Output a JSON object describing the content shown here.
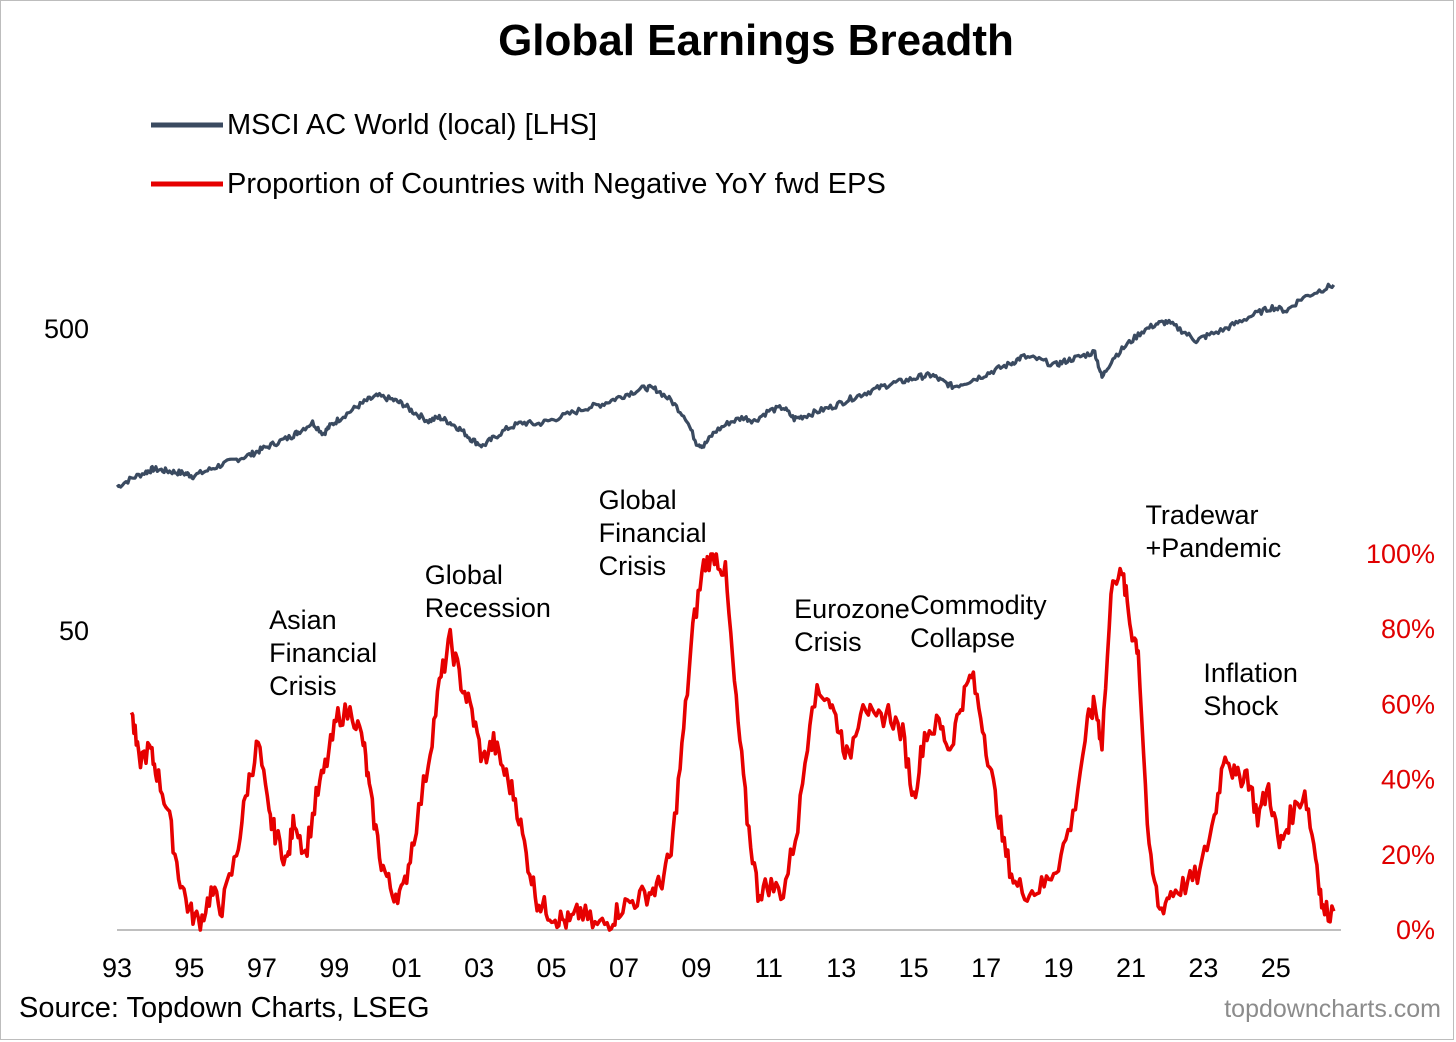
{
  "chart_data": {
    "type": "line",
    "title": "Global Earnings Breadth",
    "source": "Source: Topdown Charts, LSEG",
    "credit": "topdowncharts.com",
    "colors": {
      "msci": "#3a4a60",
      "breadth": "#e60000",
      "axis_right": "#e00000"
    },
    "x_ticks": [
      "93",
      "95",
      "97",
      "99",
      "01",
      "03",
      "05",
      "07",
      "09",
      "11",
      "13",
      "15",
      "17",
      "19",
      "21",
      "23",
      "25"
    ],
    "xlim": [
      1993,
      2026.8
    ],
    "y_left": {
      "scale": "log",
      "ticks": [
        "500",
        "50"
      ],
      "tick_values": [
        500,
        50
      ],
      "ylim": [
        5,
        1500
      ]
    },
    "y_right": {
      "ticks": [
        "100%",
        "80%",
        "60%",
        "40%",
        "20%",
        "0%"
      ],
      "tick_values": [
        1.0,
        0.8,
        0.6,
        0.4,
        0.2,
        0.0
      ],
      "ylim": [
        0,
        1
      ]
    },
    "series": [
      {
        "name": "MSCI AC World (local) [LHS]",
        "axis": "left",
        "points": [
          [
            1993.0,
            150
          ],
          [
            1993.4,
            160
          ],
          [
            1993.8,
            168
          ],
          [
            1994.0,
            172
          ],
          [
            1994.3,
            170
          ],
          [
            1994.6,
            168
          ],
          [
            1994.9,
            166
          ],
          [
            1995.1,
            163
          ],
          [
            1995.5,
            170
          ],
          [
            1995.9,
            178
          ],
          [
            1996.3,
            185
          ],
          [
            1996.7,
            192
          ],
          [
            1997.0,
            200
          ],
          [
            1997.4,
            210
          ],
          [
            1997.8,
            220
          ],
          [
            1998.0,
            228
          ],
          [
            1998.4,
            245
          ],
          [
            1998.7,
            225
          ],
          [
            1998.9,
            240
          ],
          [
            1999.2,
            255
          ],
          [
            1999.6,
            275
          ],
          [
            1999.9,
            290
          ],
          [
            2000.2,
            300
          ],
          [
            2000.6,
            292
          ],
          [
            2000.9,
            282
          ],
          [
            2001.2,
            265
          ],
          [
            2001.6,
            248
          ],
          [
            2001.9,
            255
          ],
          [
            2002.2,
            245
          ],
          [
            2002.5,
            232
          ],
          [
            2002.8,
            215
          ],
          [
            2003.1,
            205
          ],
          [
            2003.4,
            218
          ],
          [
            2003.8,
            235
          ],
          [
            2004.2,
            245
          ],
          [
            2004.6,
            242
          ],
          [
            2005.0,
            250
          ],
          [
            2005.5,
            262
          ],
          [
            2006.0,
            275
          ],
          [
            2006.4,
            282
          ],
          [
            2006.8,
            295
          ],
          [
            2007.2,
            308
          ],
          [
            2007.6,
            320
          ],
          [
            2007.9,
            315
          ],
          [
            2008.3,
            290
          ],
          [
            2008.7,
            255
          ],
          [
            2009.0,
            210
          ],
          [
            2009.2,
            205
          ],
          [
            2009.5,
            228
          ],
          [
            2009.9,
            245
          ],
          [
            2010.3,
            255
          ],
          [
            2010.6,
            248
          ],
          [
            2011.0,
            268
          ],
          [
            2011.4,
            275
          ],
          [
            2011.7,
            252
          ],
          [
            2012.0,
            258
          ],
          [
            2012.4,
            268
          ],
          [
            2012.8,
            278
          ],
          [
            2013.2,
            292
          ],
          [
            2013.6,
            305
          ],
          [
            2014.0,
            318
          ],
          [
            2014.4,
            330
          ],
          [
            2014.8,
            338
          ],
          [
            2015.2,
            348
          ],
          [
            2015.5,
            352
          ],
          [
            2015.8,
            335
          ],
          [
            2016.1,
            322
          ],
          [
            2016.5,
            335
          ],
          [
            2016.9,
            350
          ],
          [
            2017.3,
            368
          ],
          [
            2017.7,
            385
          ],
          [
            2018.0,
            405
          ],
          [
            2018.4,
            398
          ],
          [
            2018.9,
            380
          ],
          [
            2019.2,
            392
          ],
          [
            2019.6,
            405
          ],
          [
            2020.0,
            420
          ],
          [
            2020.2,
            345
          ],
          [
            2020.5,
            400
          ],
          [
            2020.9,
            445
          ],
          [
            2021.3,
            490
          ],
          [
            2021.7,
            520
          ],
          [
            2022.0,
            528
          ],
          [
            2022.4,
            495
          ],
          [
            2022.8,
            458
          ],
          [
            2023.1,
            475
          ],
          [
            2023.6,
            500
          ],
          [
            2024.0,
            530
          ],
          [
            2024.5,
            565
          ],
          [
            2024.9,
            590
          ],
          [
            2025.3,
            575
          ],
          [
            2025.7,
            630
          ],
          [
            2026.2,
            670
          ],
          [
            2026.6,
            700
          ]
        ]
      },
      {
        "name": "Proportion of Countries with Negative YoY fwd EPS",
        "axis": "right",
        "points": [
          [
            1993.4,
            0.58
          ],
          [
            1993.6,
            0.45
          ],
          [
            1993.9,
            0.48
          ],
          [
            1994.1,
            0.42
          ],
          [
            1994.4,
            0.32
          ],
          [
            1994.7,
            0.15
          ],
          [
            1995.0,
            0.05
          ],
          [
            1995.3,
            0.02
          ],
          [
            1995.6,
            0.1
          ],
          [
            1995.9,
            0.06
          ],
          [
            1996.3,
            0.2
          ],
          [
            1996.6,
            0.38
          ],
          [
            1996.9,
            0.5
          ],
          [
            1997.2,
            0.3
          ],
          [
            1997.4,
            0.25
          ],
          [
            1997.7,
            0.18
          ],
          [
            1997.9,
            0.3
          ],
          [
            1998.2,
            0.2
          ],
          [
            1998.5,
            0.35
          ],
          [
            1998.8,
            0.45
          ],
          [
            1999.1,
            0.57
          ],
          [
            1999.5,
            0.58
          ],
          [
            1999.8,
            0.5
          ],
          [
            2000.0,
            0.35
          ],
          [
            2000.3,
            0.18
          ],
          [
            2000.6,
            0.1
          ],
          [
            2000.9,
            0.1
          ],
          [
            2001.2,
            0.25
          ],
          [
            2001.6,
            0.45
          ],
          [
            2001.9,
            0.65
          ],
          [
            2002.2,
            0.77
          ],
          [
            2002.5,
            0.66
          ],
          [
            2002.8,
            0.58
          ],
          [
            2003.1,
            0.45
          ],
          [
            2003.4,
            0.5
          ],
          [
            2003.7,
            0.42
          ],
          [
            2004.0,
            0.35
          ],
          [
            2004.3,
            0.2
          ],
          [
            2004.6,
            0.08
          ],
          [
            2004.9,
            0.05
          ],
          [
            2005.2,
            0.03
          ],
          [
            2005.5,
            0.02
          ],
          [
            2005.8,
            0.05
          ],
          [
            2006.2,
            0.01
          ],
          [
            2006.6,
            0.02
          ],
          [
            2006.9,
            0.06
          ],
          [
            2007.3,
            0.08
          ],
          [
            2007.7,
            0.1
          ],
          [
            2008.0,
            0.12
          ],
          [
            2008.3,
            0.2
          ],
          [
            2008.6,
            0.48
          ],
          [
            2008.9,
            0.8
          ],
          [
            2009.2,
            0.97
          ],
          [
            2009.5,
            1.0
          ],
          [
            2009.8,
            0.95
          ],
          [
            2010.1,
            0.6
          ],
          [
            2010.4,
            0.3
          ],
          [
            2010.7,
            0.1
          ],
          [
            2011.0,
            0.12
          ],
          [
            2011.4,
            0.1
          ],
          [
            2011.8,
            0.28
          ],
          [
            2012.2,
            0.62
          ],
          [
            2012.6,
            0.63
          ],
          [
            2012.9,
            0.55
          ],
          [
            2013.2,
            0.45
          ],
          [
            2013.6,
            0.62
          ],
          [
            2013.9,
            0.55
          ],
          [
            2014.3,
            0.58
          ],
          [
            2014.7,
            0.52
          ],
          [
            2015.0,
            0.35
          ],
          [
            2015.3,
            0.52
          ],
          [
            2015.7,
            0.55
          ],
          [
            2016.0,
            0.48
          ],
          [
            2016.3,
            0.6
          ],
          [
            2016.6,
            0.68
          ],
          [
            2016.9,
            0.55
          ],
          [
            2017.2,
            0.38
          ],
          [
            2017.5,
            0.22
          ],
          [
            2017.8,
            0.12
          ],
          [
            2018.2,
            0.1
          ],
          [
            2018.6,
            0.12
          ],
          [
            2019.0,
            0.18
          ],
          [
            2019.4,
            0.3
          ],
          [
            2019.8,
            0.55
          ],
          [
            2020.0,
            0.6
          ],
          [
            2020.2,
            0.5
          ],
          [
            2020.5,
            0.95
          ],
          [
            2020.8,
            0.93
          ],
          [
            2021.0,
            0.8
          ],
          [
            2021.2,
            0.75
          ],
          [
            2021.5,
            0.2
          ],
          [
            2021.8,
            0.05
          ],
          [
            2022.1,
            0.1
          ],
          [
            2022.5,
            0.12
          ],
          [
            2022.9,
            0.15
          ],
          [
            2023.3,
            0.3
          ],
          [
            2023.6,
            0.48
          ],
          [
            2023.9,
            0.4
          ],
          [
            2024.2,
            0.42
          ],
          [
            2024.5,
            0.3
          ],
          [
            2024.8,
            0.38
          ],
          [
            2025.1,
            0.22
          ],
          [
            2025.4,
            0.3
          ],
          [
            2025.8,
            0.37
          ],
          [
            2026.1,
            0.2
          ],
          [
            2026.3,
            0.05
          ],
          [
            2026.6,
            0.05
          ]
        ]
      }
    ],
    "annotations": [
      {
        "lines": [
          "Asian",
          "Financial",
          "Crisis"
        ],
        "x": 1997.2,
        "y_right": 0.8
      },
      {
        "lines": [
          "Global",
          "Recession"
        ],
        "x": 2001.5,
        "y_right": 0.92
      },
      {
        "lines": [
          "Global",
          "Financial",
          "Crisis"
        ],
        "x": 2006.3,
        "y_right": 1.12
      },
      {
        "lines": [
          "Eurozone",
          "Crisis"
        ],
        "x": 2011.7,
        "y_right": 0.83
      },
      {
        "lines": [
          "Commodity",
          "Collapse"
        ],
        "x": 2014.9,
        "y_right": 0.84
      },
      {
        "lines": [
          "Tradewar",
          "+Pandemic"
        ],
        "x": 2021.4,
        "y_right": 1.08
      },
      {
        "lines": [
          "Inflation",
          "Shock"
        ],
        "x": 2023.0,
        "y_right": 0.66
      }
    ]
  }
}
